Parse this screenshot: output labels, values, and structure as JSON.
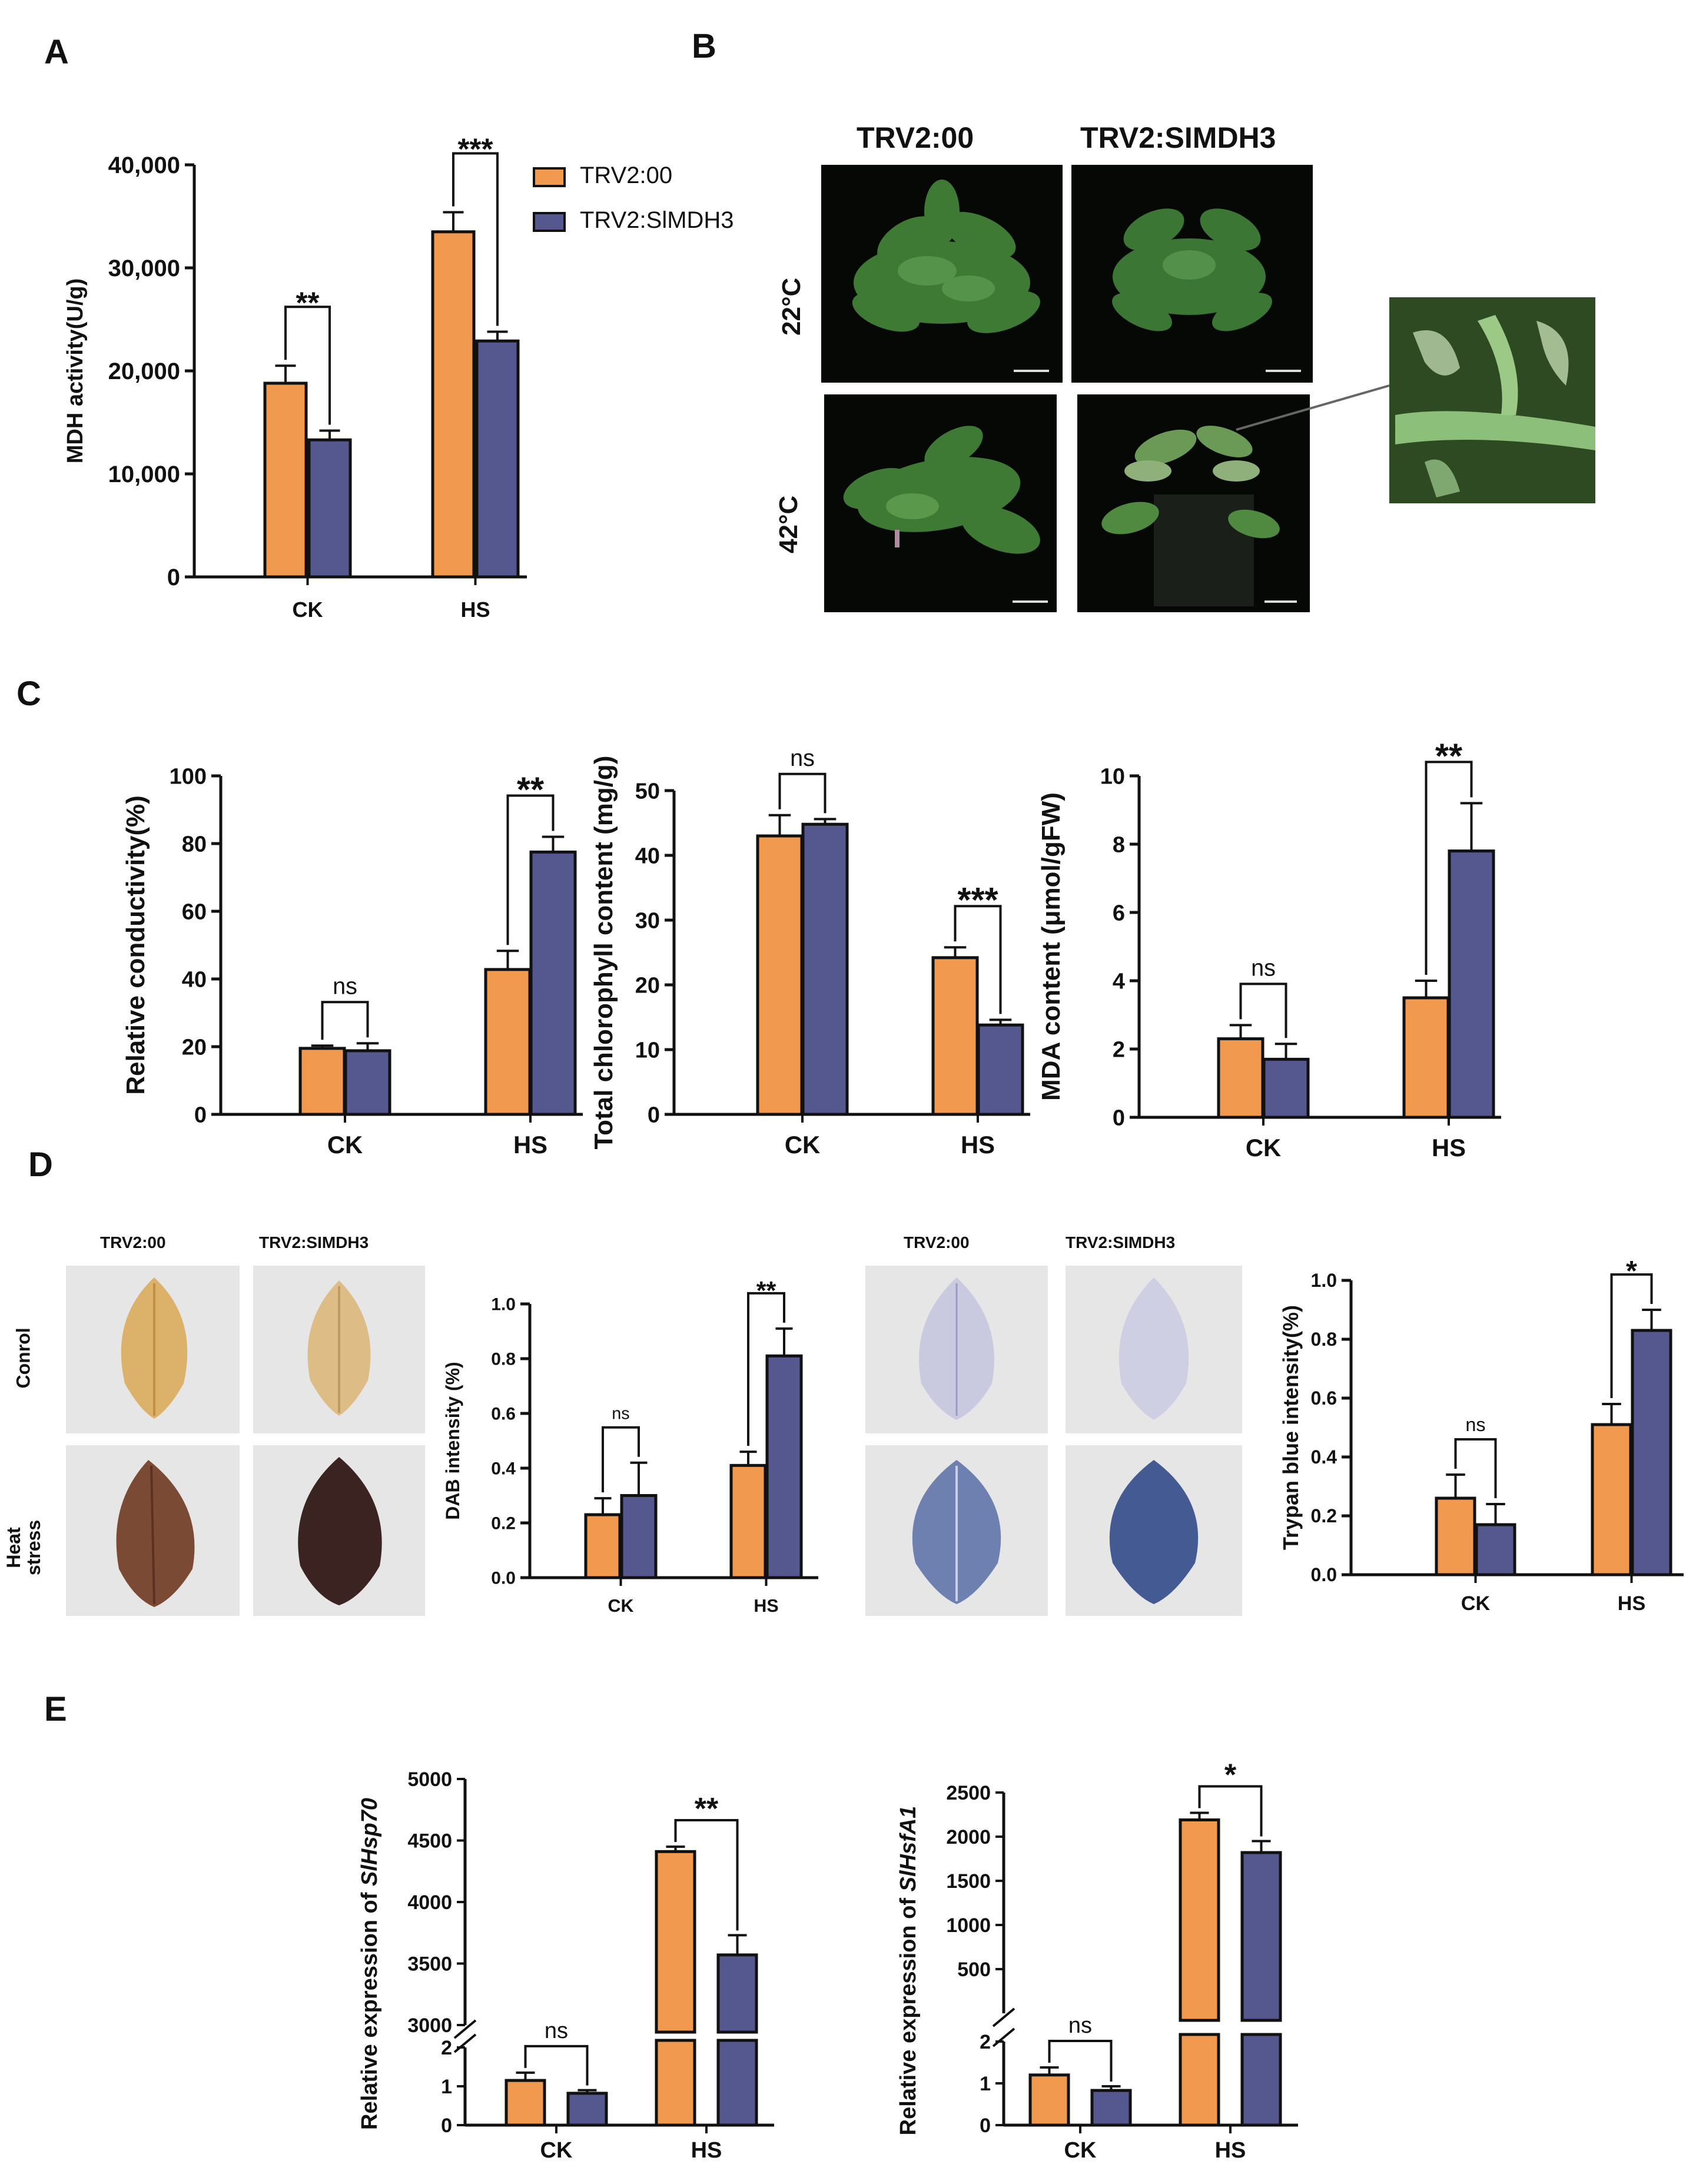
{
  "panel_labels": {
    "a": "A",
    "b": "B",
    "c": "C",
    "d": "D",
    "e": "E"
  },
  "colors": {
    "trv2_00": "#F0994F",
    "trv2_slmdh3": "#55588E",
    "axis": "#111111"
  },
  "legend": {
    "series": [
      "TRV2:00",
      "TRV2:SlMDH3"
    ]
  },
  "panel_b": {
    "col_titles": [
      "TRV2:00",
      "TRV2:SIMDH3"
    ],
    "row_labels": [
      "22°C",
      "42°C"
    ]
  },
  "panel_d": {
    "col_titles_left": [
      "TRV2:00",
      "TRV2:SIMDH3"
    ],
    "col_titles_right": [
      "TRV2:00",
      "TRV2:SIMDH3"
    ],
    "row_labels": [
      "Conrol",
      "Heat stress"
    ]
  },
  "chart_data": [
    {
      "id": "A",
      "type": "bar",
      "categories": [
        "CK",
        "HS"
      ],
      "series": [
        {
          "name": "TRV2:00",
          "values": [
            18800,
            33500
          ],
          "errors": [
            1700,
            1900
          ]
        },
        {
          "name": "TRV2:SlMDH3",
          "values": [
            13300,
            22900
          ],
          "errors": [
            900,
            900
          ]
        }
      ],
      "ylabel": "MDH activity(U/g)",
      "ylim": [
        0,
        40000
      ],
      "yticks": [
        0,
        10000,
        20000,
        30000,
        40000
      ],
      "yticklabels": [
        "0",
        "10,000",
        "20,000",
        "30,000",
        "40,000"
      ],
      "significance": [
        "**",
        "***"
      ]
    },
    {
      "id": "C1",
      "type": "bar",
      "categories": [
        "CK",
        "HS"
      ],
      "series": [
        {
          "name": "TRV2:00",
          "values": [
            19.5,
            42.8
          ],
          "errors": [
            0.8,
            5.5
          ]
        },
        {
          "name": "TRV2:SlMDH3",
          "values": [
            18.8,
            77.5
          ],
          "errors": [
            2.2,
            4.5
          ]
        }
      ],
      "ylabel": "Relative conductivity(%)",
      "ylim": [
        0,
        100
      ],
      "yticks": [
        0,
        20,
        40,
        60,
        80,
        100
      ],
      "yticklabels": [
        "0",
        "20",
        "40",
        "60",
        "80",
        "100"
      ],
      "significance": [
        "ns",
        "**"
      ]
    },
    {
      "id": "C2",
      "type": "bar",
      "categories": [
        "CK",
        "HS"
      ],
      "series": [
        {
          "name": "TRV2:00",
          "values": [
            43.0,
            24.2
          ],
          "errors": [
            3.2,
            1.6
          ]
        },
        {
          "name": "TRV2:SlMDH3",
          "values": [
            44.8,
            13.8
          ],
          "errors": [
            0.8,
            0.8
          ]
        }
      ],
      "ylabel": "Total chlorophyll content (mg/g)",
      "ylim": [
        0,
        50
      ],
      "yticks": [
        0,
        10,
        20,
        30,
        40,
        50
      ],
      "yticklabels": [
        "0",
        "10",
        "20",
        "30",
        "40",
        "50"
      ],
      "significance": [
        "ns",
        "***"
      ]
    },
    {
      "id": "C3",
      "type": "bar",
      "categories": [
        "CK",
        "HS"
      ],
      "series": [
        {
          "name": "TRV2:00",
          "values": [
            2.3,
            3.5
          ],
          "errors": [
            0.4,
            0.5
          ]
        },
        {
          "name": "TRV2:SlMDH3",
          "values": [
            1.7,
            7.8
          ],
          "errors": [
            0.45,
            1.4
          ]
        }
      ],
      "ylabel": "MDA content (μmol/gFW)",
      "ylim": [
        0,
        10
      ],
      "yticks": [
        0,
        2,
        4,
        6,
        8,
        10
      ],
      "yticklabels": [
        "0",
        "2",
        "4",
        "6",
        "8",
        "10"
      ],
      "significance": [
        "ns",
        "**"
      ]
    },
    {
      "id": "D1",
      "type": "bar",
      "categories": [
        "CK",
        "HS"
      ],
      "series": [
        {
          "name": "TRV2:00",
          "values": [
            0.23,
            0.41
          ],
          "errors": [
            0.06,
            0.05
          ]
        },
        {
          "name": "TRV2:SlMDH3",
          "values": [
            0.3,
            0.81
          ],
          "errors": [
            0.12,
            0.1
          ]
        }
      ],
      "ylabel": "DAB intensity (%)",
      "ylim": [
        0,
        1.0
      ],
      "yticks": [
        0,
        0.2,
        0.4,
        0.6,
        0.8,
        1.0
      ],
      "yticklabels": [
        "0.0",
        "0.2",
        "0.4",
        "0.6",
        "0.8",
        "1.0"
      ],
      "significance": [
        "ns",
        "**"
      ]
    },
    {
      "id": "D2",
      "type": "bar",
      "categories": [
        "CK",
        "HS"
      ],
      "series": [
        {
          "name": "TRV2:00",
          "values": [
            0.26,
            0.51
          ],
          "errors": [
            0.08,
            0.07
          ]
        },
        {
          "name": "TRV2:SlMDH3",
          "values": [
            0.17,
            0.83
          ],
          "errors": [
            0.07,
            0.07
          ]
        }
      ],
      "ylabel": "Trypan blue intensity(%)",
      "ylim": [
        0,
        1.0
      ],
      "yticks": [
        0,
        0.2,
        0.4,
        0.6,
        0.8,
        1.0
      ],
      "yticklabels": [
        "0.0",
        "0.2",
        "0.4",
        "0.6",
        "0.8",
        "1.0"
      ],
      "significance": [
        "ns",
        "*"
      ]
    },
    {
      "id": "E1",
      "type": "bar",
      "broken_axis": true,
      "categories": [
        "CK",
        "HS"
      ],
      "series": [
        {
          "name": "TRV2:00",
          "values": [
            1.15,
            4410
          ],
          "errors": [
            0.2,
            40
          ]
        },
        {
          "name": "TRV2:SlMDH3",
          "values": [
            0.82,
            3570
          ],
          "errors": [
            0.08,
            160
          ]
        }
      ],
      "ylabel_prefix": "Relative expression of ",
      "ylabel_gene": "SlHsp70",
      "ylim_lower": [
        0,
        2
      ],
      "ylim_upper": [
        3000,
        5000
      ],
      "yticks_lower": [
        "0",
        "1",
        "2"
      ],
      "yticks_upper": [
        "3000",
        "3500",
        "4000",
        "4500",
        "5000"
      ],
      "significance": [
        "ns",
        "**"
      ]
    },
    {
      "id": "E2",
      "type": "bar",
      "broken_axis": true,
      "categories": [
        "CK",
        "HS"
      ],
      "series": [
        {
          "name": "TRV2:00",
          "values": [
            1.2,
            2190
          ],
          "errors": [
            0.18,
            80
          ]
        },
        {
          "name": "TRV2:SlMDH3",
          "values": [
            0.83,
            1820
          ],
          "errors": [
            0.1,
            130
          ]
        }
      ],
      "ylabel_prefix": "Relative expression of ",
      "ylabel_gene": "SlHsfA1",
      "ylim_lower": [
        0,
        2
      ],
      "ylim_upper": [
        0,
        2500
      ],
      "yticks_lower": [
        "0",
        "1",
        "2"
      ],
      "yticks_upper": [
        "500",
        "1000",
        "1500",
        "2000",
        "2500"
      ],
      "significance": [
        "ns",
        "*"
      ]
    }
  ]
}
